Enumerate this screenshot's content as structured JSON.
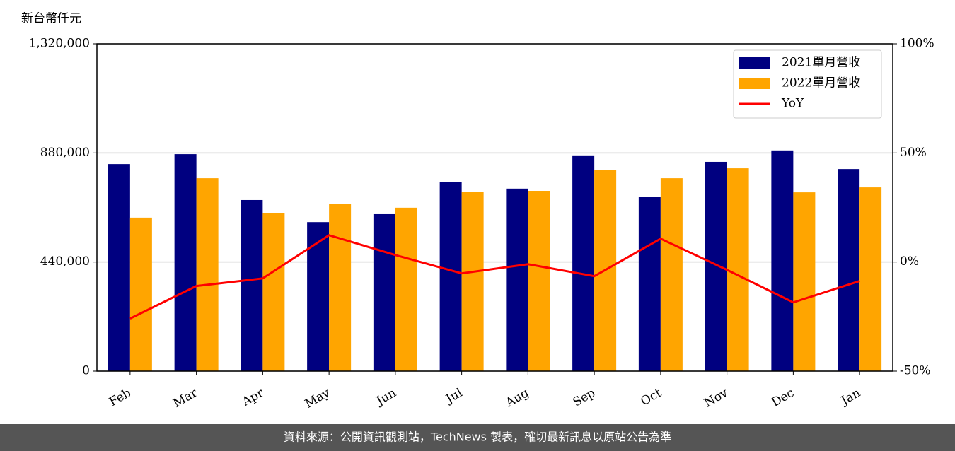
{
  "chart_data": {
    "type": "bar",
    "y_label": "新台幣仟元",
    "categories": [
      "Feb",
      "Mar",
      "Apr",
      "May",
      "Jun",
      "Jul",
      "Aug",
      "Sep",
      "Oct",
      "Nov",
      "Dec",
      "Jan"
    ],
    "series": [
      {
        "name": "2021單月營收",
        "color": "#000080",
        "values": [
          835000,
          875000,
          690000,
          601000,
          633000,
          764000,
          736000,
          870000,
          704000,
          844000,
          890000,
          815000
        ]
      },
      {
        "name": "2022單月營收",
        "color": "#ffa500",
        "values": [
          619000,
          778000,
          636000,
          673000,
          659000,
          724000,
          727000,
          810000,
          778000,
          818000,
          721000,
          741000
        ]
      },
      {
        "name": "YoY",
        "type": "line",
        "axis": "y2",
        "color": "#ff0000",
        "values": [
          -25.9,
          -11,
          -7.5,
          12.3,
          3.2,
          -5.2,
          -1,
          -6.5,
          10.7,
          -3.6,
          -18.5,
          -8.7
        ]
      }
    ],
    "ylim": [
      0,
      1320000
    ],
    "yticks": [
      0,
      {
        "value": 440000,
        "label": "440,000"
      },
      {
        "value": 880000,
        "label": "880,000"
      },
      {
        "value": 1320000,
        "label": "1,320,000"
      }
    ],
    "y2lim": [
      -50,
      100
    ],
    "y2ticks": [
      {
        "value": -50,
        "label": "-50%"
      },
      {
        "value": 0,
        "label": "0%"
      },
      {
        "value": 50,
        "label": "50%"
      },
      {
        "value": 100,
        "label": "100%"
      }
    ],
    "grid": true,
    "legend": "upper right",
    "footer": "資料來源：公開資訊觀測站，TechNews 製表，確切最新訊息以原站公告為準"
  }
}
